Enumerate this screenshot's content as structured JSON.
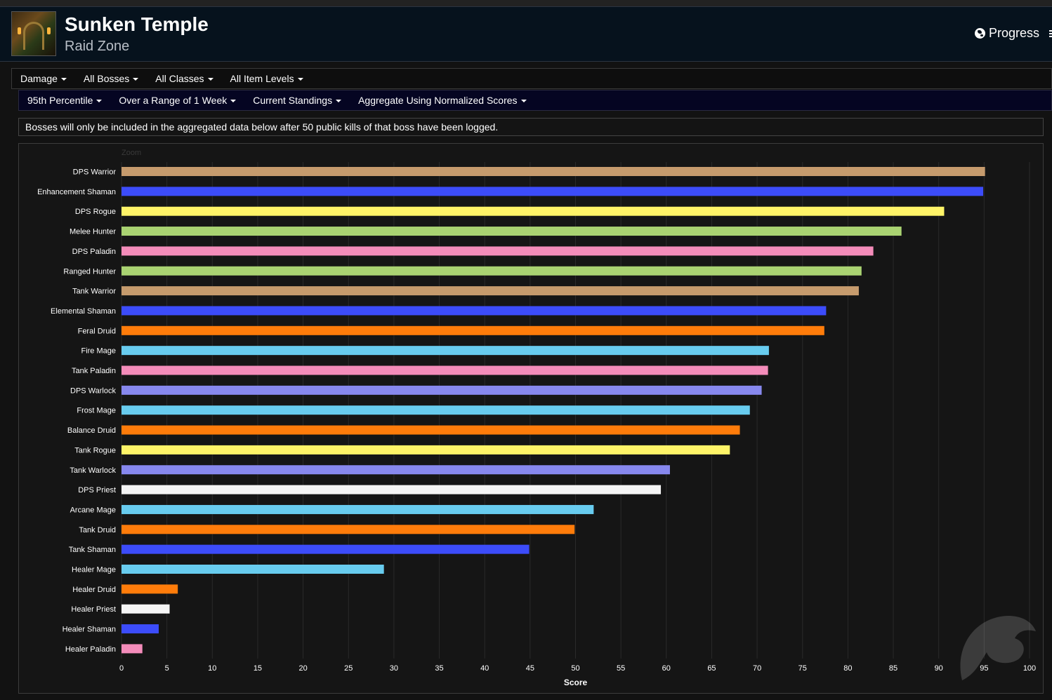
{
  "header": {
    "title": "Sunken Temple",
    "subtitle": "Raid Zone",
    "progress_label": "Progress"
  },
  "filters_primary": [
    {
      "label": "Damage"
    },
    {
      "label": "All Bosses"
    },
    {
      "label": "All Classes"
    },
    {
      "label": "All Item Levels"
    }
  ],
  "filters_secondary": [
    {
      "label": "95th Percentile"
    },
    {
      "label": "Over a Range of 1 Week"
    },
    {
      "label": "Current Standings"
    },
    {
      "label": "Aggregate Using Normalized Scores"
    }
  ],
  "notice": "Bosses will only be included in the aggregated data below after 50 public kills of that boss have been logged.",
  "zoom_label": "Zoom",
  "colors": {
    "warrior": "#c69b6d",
    "shaman": "#3c4cfa",
    "rogue": "#fff468",
    "hunter": "#aad372",
    "paladin": "#f48cba",
    "druid": "#ff7c0a",
    "mage": "#68ccef",
    "warlock": "#8788ee",
    "priest": "#f5f5f5"
  },
  "chart_data": {
    "type": "bar",
    "orientation": "horizontal",
    "xlabel": "Score",
    "xlim": [
      0,
      100
    ],
    "xticks": [
      0,
      5,
      10,
      15,
      20,
      25,
      30,
      35,
      40,
      45,
      50,
      55,
      60,
      65,
      70,
      75,
      80,
      85,
      90,
      95,
      100
    ],
    "grid": true,
    "categories": [
      "DPS Warrior",
      "Enhancement Shaman",
      "DPS Rogue",
      "Melee Hunter",
      "DPS Paladin",
      "Ranged Hunter",
      "Tank Warrior",
      "Elemental Shaman",
      "Feral Druid",
      "Fire Mage",
      "Tank Paladin",
      "DPS Warlock",
      "Frost Mage",
      "Balance Druid",
      "Tank Rogue",
      "Tank Warlock",
      "DPS Priest",
      "Arcane Mage",
      "Tank Druid",
      "Tank Shaman",
      "Healer Mage",
      "Healer Druid",
      "Healer Priest",
      "Healer Shaman",
      "Healer Paladin"
    ],
    "values": [
      95.1,
      94.9,
      90.6,
      85.9,
      82.8,
      81.5,
      81.2,
      77.6,
      77.4,
      71.3,
      71.2,
      70.5,
      69.2,
      68.1,
      67.0,
      60.4,
      59.4,
      52.0,
      49.9,
      44.9,
      28.9,
      6.2,
      5.3,
      4.1,
      2.3
    ],
    "bar_colors": [
      "#c69b6d",
      "#3c4cfa",
      "#fff468",
      "#aad372",
      "#f48cba",
      "#aad372",
      "#c69b6d",
      "#3c4cfa",
      "#ff7c0a",
      "#68ccef",
      "#f48cba",
      "#8788ee",
      "#68ccef",
      "#ff7c0a",
      "#fff468",
      "#8788ee",
      "#f5f5f5",
      "#68ccef",
      "#ff7c0a",
      "#3c4cfa",
      "#68ccef",
      "#ff7c0a",
      "#f5f5f5",
      "#3c4cfa",
      "#f48cba"
    ]
  }
}
